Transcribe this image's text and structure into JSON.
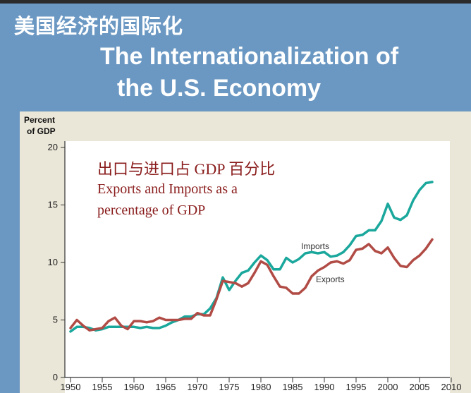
{
  "slide": {
    "title_cn": "美国经济的国际化",
    "title_en_line1": "The Internationalization of",
    "title_en_line2": "the U.S. Economy"
  },
  "chart_data": {
    "type": "line",
    "ylabel_line1": "Percent",
    "ylabel_line2": "of GDP",
    "xlabel": "",
    "xlim": [
      1949,
      2011
    ],
    "ylim": [
      0,
      20
    ],
    "x_ticks": [
      1950,
      1955,
      1960,
      1965,
      1970,
      1975,
      1980,
      1985,
      1990,
      1995,
      2000,
      2005,
      2010
    ],
    "y_ticks": [
      0,
      5,
      10,
      15,
      20
    ],
    "annotation_cn": "出口与进口占 GDP 百分比",
    "annotation_en_line1": "Exports and Imports as a",
    "annotation_en_line2": "percentage of GDP",
    "series": [
      {
        "name": "Imports",
        "color": "#1aa79c",
        "x": [
          1950,
          1951,
          1952,
          1953,
          1954,
          1955,
          1956,
          1957,
          1958,
          1959,
          1960,
          1961,
          1962,
          1963,
          1964,
          1965,
          1966,
          1967,
          1968,
          1969,
          1970,
          1971,
          1972,
          1973,
          1974,
          1975,
          1976,
          1977,
          1978,
          1979,
          1980,
          1981,
          1982,
          1983,
          1984,
          1985,
          1986,
          1987,
          1988,
          1989,
          1990,
          1991,
          1992,
          1993,
          1994,
          1995,
          1996,
          1997,
          1998,
          1999,
          2000,
          2001,
          2002,
          2003,
          2004,
          2005,
          2006,
          2007
        ],
        "values": [
          4.0,
          4.4,
          4.4,
          4.3,
          4.1,
          4.2,
          4.4,
          4.4,
          4.4,
          4.4,
          4.4,
          4.3,
          4.4,
          4.3,
          4.3,
          4.5,
          4.8,
          5.0,
          5.3,
          5.3,
          5.5,
          5.5,
          6.0,
          6.9,
          8.7,
          7.6,
          8.4,
          9.1,
          9.3,
          10.0,
          10.6,
          10.2,
          9.4,
          9.4,
          10.4,
          10.0,
          10.3,
          10.8,
          10.9,
          10.8,
          10.9,
          10.5,
          10.6,
          10.9,
          11.5,
          12.3,
          12.4,
          12.8,
          12.8,
          13.6,
          15.1,
          13.9,
          13.7,
          14.1,
          15.4,
          16.3,
          16.9,
          17.0
        ]
      },
      {
        "name": "Exports",
        "color": "#b14b45",
        "x": [
          1950,
          1951,
          1952,
          1953,
          1954,
          1955,
          1956,
          1957,
          1958,
          1959,
          1960,
          1961,
          1962,
          1963,
          1964,
          1965,
          1966,
          1967,
          1968,
          1969,
          1970,
          1971,
          1972,
          1973,
          1974,
          1975,
          1976,
          1977,
          1978,
          1979,
          1980,
          1981,
          1982,
          1983,
          1984,
          1985,
          1986,
          1987,
          1988,
          1989,
          1990,
          1991,
          1992,
          1993,
          1994,
          1995,
          1996,
          1997,
          1998,
          1999,
          2000,
          2001,
          2002,
          2003,
          2004,
          2005,
          2006,
          2007
        ],
        "values": [
          4.3,
          5.0,
          4.5,
          4.1,
          4.2,
          4.3,
          4.9,
          5.2,
          4.5,
          4.2,
          4.9,
          4.9,
          4.8,
          4.9,
          5.2,
          5.0,
          5.0,
          5.0,
          5.1,
          5.1,
          5.6,
          5.4,
          5.4,
          6.8,
          8.4,
          8.3,
          8.2,
          7.9,
          8.2,
          9.1,
          10.1,
          9.8,
          8.8,
          7.9,
          7.8,
          7.3,
          7.3,
          7.8,
          8.8,
          9.3,
          9.6,
          10.0,
          10.1,
          9.9,
          10.2,
          11.1,
          11.2,
          11.6,
          11.0,
          10.8,
          11.3,
          10.4,
          9.7,
          9.6,
          10.2,
          10.6,
          11.2,
          12.0
        ]
      }
    ]
  }
}
